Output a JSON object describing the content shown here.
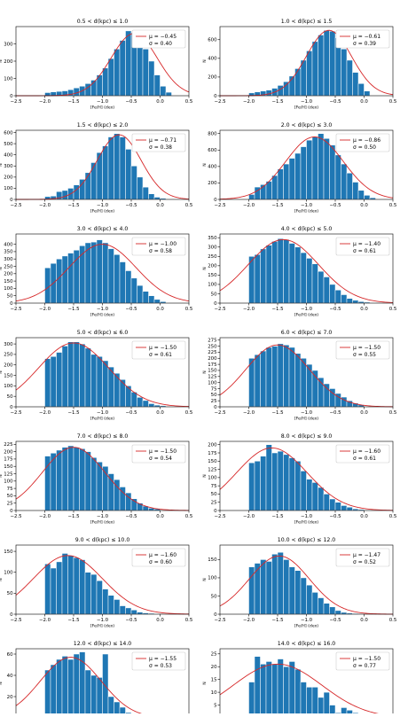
{
  "figure": {
    "xlabel": "[Fe/H] (dex)",
    "ylabel": "N",
    "colors": {
      "bar": "#1f77b4",
      "fit": "#d62728",
      "axis": "#000000",
      "legend_border": "#cccccc"
    }
  },
  "chart_data": [
    {
      "type": "bar",
      "title": "0.5 < d(kpc) ≤ 1.0",
      "legend": [
        "μ = −0.45",
        "σ = 0.40"
      ],
      "xlim": [
        -2.5,
        0.5
      ],
      "ylim": [
        0,
        400
      ],
      "yticks": [
        0,
        100,
        200,
        300
      ],
      "xticks": [
        "−2.5",
        "−2.0",
        "−1.5",
        "−1.0",
        "−0.5",
        "0.0",
        "0.5"
      ],
      "xticks_values": [
        -2.5,
        -2.0,
        -1.5,
        -1.0,
        -0.5,
        0.0,
        0.5
      ],
      "bin_start": -2.0,
      "bin_width": 0.1,
      "values": [
        18,
        22,
        25,
        28,
        35,
        45,
        55,
        70,
        90,
        120,
        160,
        215,
        270,
        320,
        375,
        365,
        330,
        270,
        200,
        120,
        55,
        20
      ],
      "fit": {
        "mu": -0.45,
        "sigma": 0.4,
        "peak": 360
      }
    },
    {
      "type": "bar",
      "title": "1.0 < d(kpc) ≤ 1.5",
      "legend": [
        "μ = −0.61",
        "σ = 0.39"
      ],
      "xlim": [
        -2.5,
        0.5
      ],
      "ylim": [
        0,
        740
      ],
      "yticks": [
        0,
        200,
        400,
        600
      ],
      "xticks": [
        "−2.5",
        "−2.0",
        "−1.5",
        "−1.0",
        "−0.5",
        "0.0",
        "0.5"
      ],
      "xticks_values": [
        -2.5,
        -2.0,
        -1.5,
        -1.0,
        -0.5,
        0.0,
        0.5
      ],
      "bin_start": -2.0,
      "bin_width": 0.1,
      "values": [
        30,
        40,
        50,
        60,
        80,
        110,
        150,
        210,
        290,
        380,
        480,
        580,
        650,
        700,
        690,
        620,
        500,
        380,
        250,
        130,
        50
      ],
      "fit": {
        "mu": -0.61,
        "sigma": 0.39,
        "peak": 700
      }
    },
    {
      "type": "bar",
      "title": "1.5 < d(kpc) ≤ 2.0",
      "legend": [
        "μ = −0.71",
        "σ = 0.38"
      ],
      "xlim": [
        -2.5,
        0.5
      ],
      "ylim": [
        0,
        620
      ],
      "yticks": [
        0,
        100,
        200,
        300,
        400,
        500,
        600
      ],
      "xticks": [
        "−2.5",
        "−2.0",
        "−1.5",
        "−1.0",
        "−0.5",
        "0.0",
        "0.5"
      ],
      "xticks_values": [
        -2.5,
        -2.0,
        -1.5,
        -1.0,
        -0.5,
        0.0,
        0.5
      ],
      "bin_start": -2.0,
      "bin_width": 0.1,
      "values": [
        25,
        30,
        70,
        80,
        100,
        130,
        180,
        240,
        330,
        420,
        480,
        560,
        590,
        560,
        450,
        300,
        200,
        110,
        50,
        20,
        10
      ],
      "fit": {
        "mu": -0.71,
        "sigma": 0.38,
        "peak": 580
      }
    },
    {
      "type": "bar",
      "title": "2.0 < d(kpc) ≤ 3.0",
      "legend": [
        "μ = −0.86",
        "σ = 0.50"
      ],
      "xlim": [
        -2.5,
        0.5
      ],
      "ylim": [
        0,
        840
      ],
      "yticks": [
        0,
        200,
        400,
        600,
        800
      ],
      "xticks": [
        "−2.5",
        "−2.0",
        "−1.5",
        "−1.0",
        "−0.5",
        "0.0",
        "0.5"
      ],
      "xticks_values": [
        -2.5,
        -2.0,
        -1.5,
        -1.0,
        -0.5,
        0.0,
        0.5
      ],
      "bin_start": -2.0,
      "bin_width": 0.1,
      "values": [
        60,
        150,
        180,
        220,
        290,
        370,
        430,
        500,
        560,
        640,
        720,
        760,
        800,
        740,
        660,
        540,
        430,
        320,
        210,
        110,
        50,
        20
      ],
      "fit": {
        "mu": -0.86,
        "sigma": 0.5,
        "peak": 760
      }
    },
    {
      "type": "bar",
      "title": "3.0 < d(kpc) ≤ 4.0",
      "legend": [
        "μ = −1.00",
        "σ = 0.58"
      ],
      "xlim": [
        -2.5,
        0.5
      ],
      "ylim": [
        0,
        470
      ],
      "yticks": [
        0,
        50,
        100,
        150,
        200,
        250,
        300,
        350,
        400
      ],
      "xticks": [
        "−2.5",
        "−2.0",
        "−1.5",
        "−1.0",
        "−0.5",
        "0.0",
        "0.5"
      ],
      "xticks_values": [
        -2.5,
        -2.0,
        -1.5,
        -1.0,
        -0.5,
        0.0,
        0.5
      ],
      "bin_start": -2.0,
      "bin_width": 0.1,
      "values": [
        240,
        270,
        300,
        320,
        340,
        360,
        390,
        410,
        415,
        430,
        410,
        370,
        330,
        280,
        220,
        170,
        120,
        80,
        50,
        25,
        10
      ],
      "fit": {
        "mu": -1.0,
        "sigma": 0.58,
        "peak": 400
      }
    },
    {
      "type": "bar",
      "title": "4.0 < d(kpc) ≤ 5.0",
      "legend": [
        "μ = −1.40",
        "σ = 0.61"
      ],
      "xlim": [
        -2.5,
        0.5
      ],
      "ylim": [
        0,
        370
      ],
      "yticks": [
        0,
        50,
        100,
        150,
        200,
        250,
        300,
        350
      ],
      "xticks": [
        "−2.5",
        "−2.0",
        "−1.5",
        "−1.0",
        "−0.5",
        "0.0",
        "0.5"
      ],
      "xticks_values": [
        -2.5,
        -2.0,
        -1.5,
        -1.0,
        -0.5,
        0.0,
        0.5
      ],
      "bin_start": -2.0,
      "bin_width": 0.1,
      "values": [
        250,
        260,
        290,
        310,
        330,
        345,
        340,
        320,
        300,
        270,
        240,
        210,
        170,
        140,
        100,
        70,
        45,
        25,
        15,
        8,
        5
      ],
      "fit": {
        "mu": -1.4,
        "sigma": 0.61,
        "peak": 340
      }
    },
    {
      "type": "bar",
      "title": "5.0 < d(kpc) ≤ 6.0",
      "legend": [
        "μ = −1.50",
        "σ = 0.61"
      ],
      "xlim": [
        -2.5,
        0.5
      ],
      "ylim": [
        0,
        330
      ],
      "yticks": [
        0,
        50,
        100,
        150,
        200,
        250,
        300
      ],
      "xticks": [
        "−2.5",
        "−2.0",
        "−1.5",
        "−1.0",
        "−0.5",
        "0.0",
        "0.5"
      ],
      "xticks_values": [
        -2.5,
        -2.0,
        -1.5,
        -1.0,
        -0.5,
        0.0,
        0.5
      ],
      "bin_start": -2.0,
      "bin_width": 0.1,
      "values": [
        230,
        240,
        260,
        290,
        310,
        310,
        300,
        280,
        250,
        240,
        220,
        190,
        160,
        130,
        100,
        70,
        45,
        30,
        15,
        8,
        5
      ],
      "fit": {
        "mu": -1.5,
        "sigma": 0.61,
        "peak": 305
      }
    },
    {
      "type": "bar",
      "title": "6.0 < d(kpc) ≤ 7.0",
      "legend": [
        "μ = −1.50",
        "σ = 0.55"
      ],
      "xlim": [
        -2.5,
        0.5
      ],
      "ylim": [
        0,
        285
      ],
      "yticks": [
        0,
        25,
        50,
        75,
        100,
        125,
        150,
        175,
        200,
        225,
        250,
        275
      ],
      "xticks": [
        "−2.5",
        "−2.0",
        "−1.5",
        "−1.0",
        "−0.5",
        "0.0",
        "0.5"
      ],
      "xticks_values": [
        -2.5,
        -2.0,
        -1.5,
        -1.0,
        -0.5,
        0.0,
        0.5
      ],
      "bin_start": -2.0,
      "bin_width": 0.1,
      "values": [
        200,
        215,
        230,
        245,
        250,
        260,
        255,
        245,
        220,
        200,
        175,
        150,
        120,
        95,
        75,
        55,
        40,
        25,
        15,
        8
      ],
      "fit": {
        "mu": -1.5,
        "sigma": 0.55,
        "peak": 255
      }
    },
    {
      "type": "bar",
      "title": "7.0 < d(kpc) ≤ 8.0",
      "legend": [
        "μ = −1.50",
        "σ = 0.54"
      ],
      "xlim": [
        -2.5,
        0.5
      ],
      "ylim": [
        0,
        235
      ],
      "yticks": [
        0,
        25,
        50,
        75,
        100,
        125,
        150,
        175,
        200,
        225
      ],
      "xticks": [
        "−2.5",
        "−2.0",
        "−1.5",
        "−1.0",
        "−0.5",
        "0.0",
        "0.5"
      ],
      "xticks_values": [
        -2.5,
        -2.0,
        -1.5,
        -1.0,
        -0.5,
        0.0,
        0.5
      ],
      "bin_start": -2.0,
      "bin_width": 0.1,
      "values": [
        185,
        195,
        205,
        215,
        220,
        215,
        210,
        200,
        180,
        165,
        150,
        125,
        105,
        80,
        60,
        40,
        25,
        15,
        8,
        5
      ],
      "fit": {
        "mu": -1.5,
        "sigma": 0.54,
        "peak": 215
      }
    },
    {
      "type": "bar",
      "title": "8.0 < d(kpc) ≤ 9.0",
      "legend": [
        "μ = −1.60",
        "σ = 0.61"
      ],
      "xlim": [
        -2.5,
        0.5
      ],
      "ylim": [
        0,
        210
      ],
      "yticks": [
        0,
        25,
        50,
        75,
        100,
        125,
        150,
        175,
        200
      ],
      "xticks": [
        "−2.5",
        "−2.0",
        "−1.5",
        "−1.0",
        "−0.5",
        "0.0",
        "0.5"
      ],
      "xticks_values": [
        -2.5,
        -2.0,
        -1.5,
        -1.0,
        -0.5,
        0.0,
        0.5
      ],
      "bin_start": -2.0,
      "bin_width": 0.1,
      "values": [
        145,
        150,
        165,
        200,
        175,
        180,
        170,
        160,
        150,
        120,
        95,
        85,
        70,
        50,
        35,
        25,
        15,
        10,
        5,
        3
      ],
      "fit": {
        "mu": -1.6,
        "sigma": 0.61,
        "peak": 190
      }
    },
    {
      "type": "bar",
      "title": "9.0 < d(kpc) ≤ 10.0",
      "legend": [
        "μ = −1.60",
        "σ = 0.60"
      ],
      "xlim": [
        -2.5,
        0.5
      ],
      "ylim": [
        0,
        165
      ],
      "yticks": [
        0,
        50,
        100,
        150
      ],
      "xticks": [
        "−2.5",
        "−2.0",
        "−1.5",
        "−1.0",
        "−0.5",
        "0.0",
        "0.5"
      ],
      "xticks_values": [
        -2.5,
        -2.0,
        -1.5,
        -1.0,
        -0.5,
        0.0,
        0.5
      ],
      "bin_start": -2.0,
      "bin_width": 0.1,
      "values": [
        120,
        110,
        125,
        145,
        140,
        135,
        130,
        100,
        95,
        80,
        60,
        45,
        35,
        20,
        15,
        10,
        5,
        3,
        2
      ],
      "fit": {
        "mu": -1.6,
        "sigma": 0.6,
        "peak": 140
      }
    },
    {
      "type": "bar",
      "title": "10.0 < d(kpc) ≤ 12.0",
      "legend": [
        "μ = −1.47",
        "σ = 0.52"
      ],
      "xlim": [
        -2.5,
        0.5
      ],
      "ylim": [
        0,
        190
      ],
      "yticks": [
        0,
        50,
        100,
        150
      ],
      "xticks": [
        "−2.5",
        "−2.0",
        "−1.5",
        "−1.0",
        "−0.5",
        "0.0",
        "0.5"
      ],
      "xticks_values": [
        -2.5,
        -2.0,
        -1.5,
        -1.0,
        -0.5,
        0.0,
        0.5
      ],
      "bin_start": -2.0,
      "bin_width": 0.1,
      "values": [
        130,
        140,
        150,
        145,
        165,
        170,
        150,
        130,
        120,
        100,
        80,
        60,
        45,
        30,
        20,
        10,
        5,
        3,
        2
      ],
      "fit": {
        "mu": -1.47,
        "sigma": 0.52,
        "peak": 160
      }
    },
    {
      "type": "bar",
      "title": "12.0 < d(kpc) ≤ 14.0",
      "legend": [
        "μ = −1.55",
        "σ = 0.53"
      ],
      "xlim": [
        -2.5,
        0.5
      ],
      "ylim": [
        0,
        65
      ],
      "yticks": [
        0,
        20,
        40,
        60
      ],
      "xticks": [
        "−2.5",
        "−2.0",
        "−1.5",
        "−1.0",
        "−0.5",
        "0.0",
        "0.5"
      ],
      "xticks_values": [
        -2.5,
        -2.0,
        -1.5,
        -1.0,
        -0.5,
        0.0,
        0.5
      ],
      "bin_start": -2.0,
      "bin_width": 0.1,
      "values": [
        45,
        50,
        55,
        58,
        55,
        60,
        62,
        45,
        40,
        38,
        60,
        20,
        15,
        10,
        5,
        3,
        2
      ],
      "fit": {
        "mu": -1.55,
        "sigma": 0.53,
        "peak": 57
      }
    },
    {
      "type": "bar",
      "title": "14.0 < d(kpc) ≤ 16.0",
      "legend": [
        "μ = −1.50",
        "σ = 0.77"
      ],
      "xlim": [
        -2.5,
        0.5
      ],
      "ylim": [
        0,
        27
      ],
      "yticks": [
        0,
        5,
        10,
        15,
        20,
        25
      ],
      "xticks": [
        "−2.5",
        "−2.0",
        "−1.5",
        "−1.0",
        "−0.5",
        "0.0",
        "0.5"
      ],
      "xticks_values": [
        -2.5,
        -2.0,
        -1.5,
        -1.0,
        -0.5,
        0.0,
        0.5
      ],
      "bin_start": -2.0,
      "bin_width": 0.1,
      "values": [
        14,
        24,
        21,
        22,
        21,
        23,
        20,
        22,
        19,
        14,
        12,
        12,
        8,
        10,
        5,
        2,
        4,
        3,
        2,
        1
      ],
      "fit": {
        "mu": -1.5,
        "sigma": 0.77,
        "peak": 21
      }
    }
  ]
}
